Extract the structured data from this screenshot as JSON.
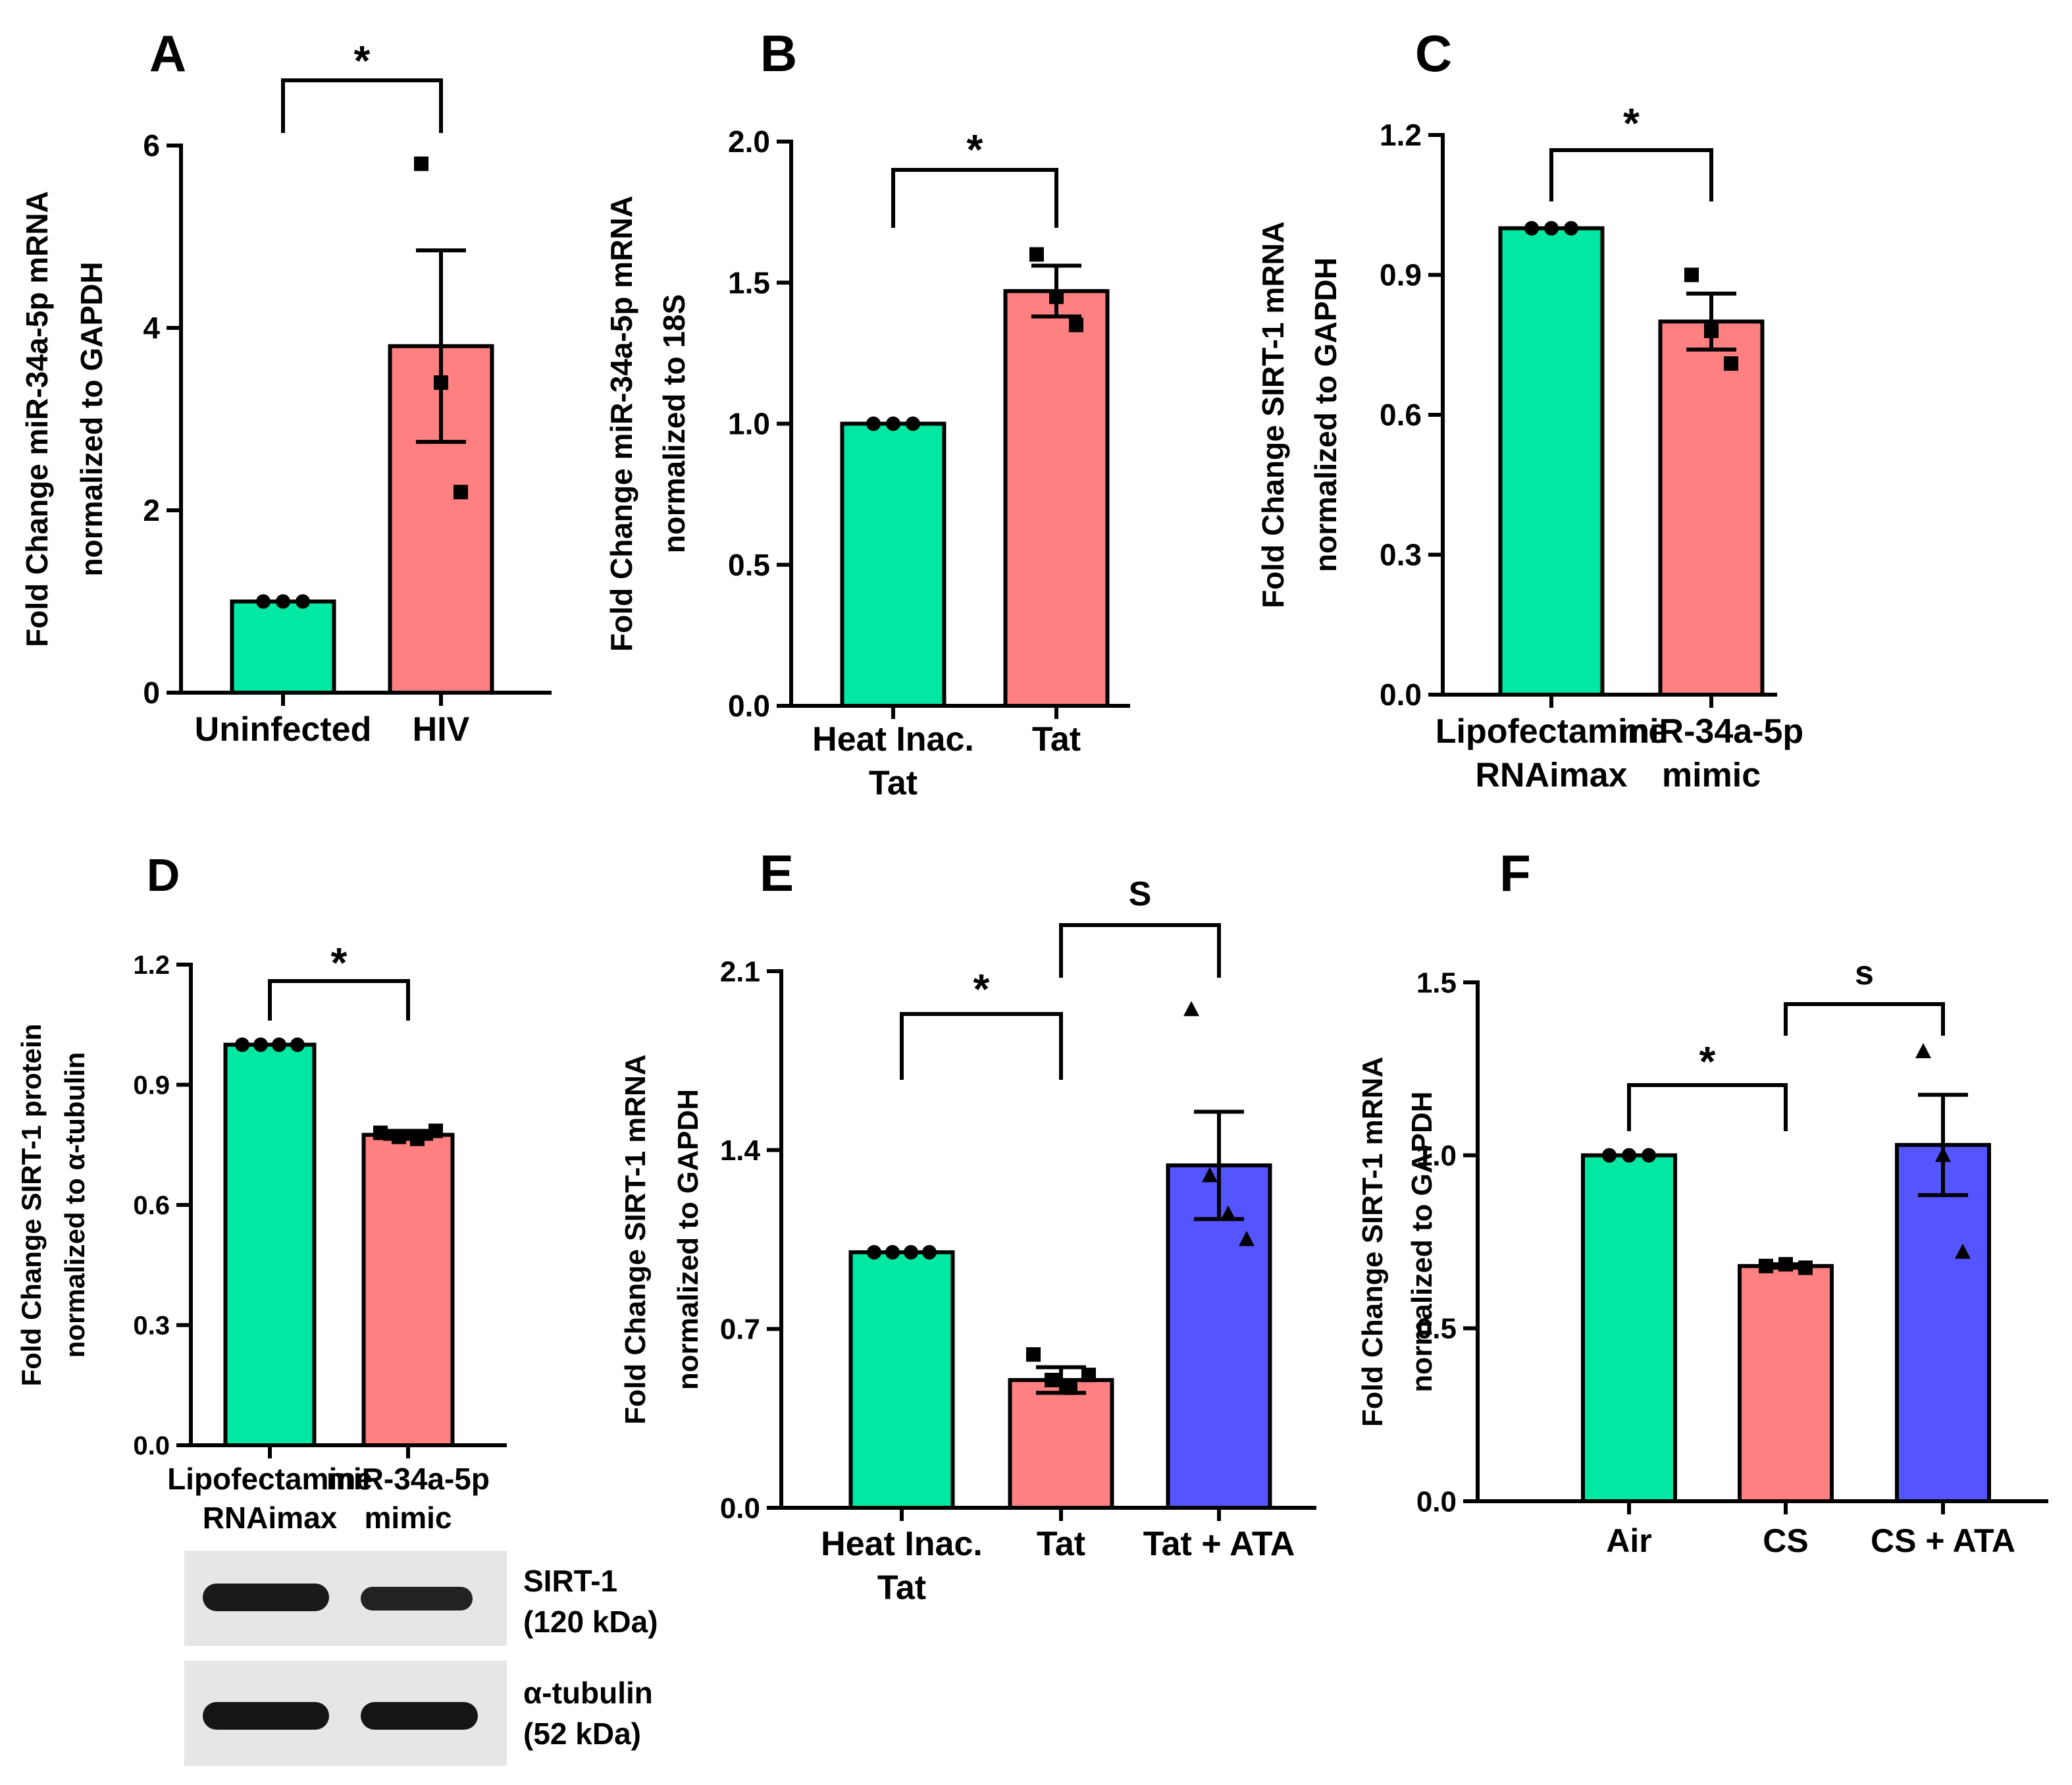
{
  "colors": {
    "green": "#00E8A2",
    "red": "#FF8080",
    "blue": "#5555FF",
    "black": "#000000"
  },
  "chart_data": [
    {
      "panel": "A",
      "type": "bar",
      "categories": [
        "Uninfected",
        "HIV"
      ],
      "values": [
        1.0,
        3.8
      ],
      "sem": [
        0,
        1.05
      ],
      "points": [
        [
          1.0,
          1.0,
          1.0
        ],
        [
          5.8,
          3.4,
          2.2
        ]
      ],
      "markers": [
        "circle",
        "square"
      ],
      "colors": [
        "#00E8A2",
        "#FF8080"
      ],
      "ylabel": [
        "Fold Change miR-34a-5p mRNA",
        "normalized to GAPDH"
      ],
      "ylim": [
        0,
        6
      ],
      "yticks": [
        "0",
        "2",
        "4",
        "6"
      ],
      "comparisons": [
        {
          "from": 0,
          "to": 1,
          "label": "*"
        }
      ]
    },
    {
      "panel": "B",
      "type": "bar",
      "categories": [
        "Heat Inac.\nTat",
        "Tat"
      ],
      "values": [
        1.0,
        1.47
      ],
      "sem": [
        0,
        0.09
      ],
      "points": [
        [
          1.0,
          1.0,
          1.0
        ],
        [
          1.6,
          1.45,
          1.35
        ]
      ],
      "markers": [
        "circle",
        "square"
      ],
      "colors": [
        "#00E8A2",
        "#FF8080"
      ],
      "ylabel": [
        "Fold Change miR-34a-5p mRNA",
        "normalized to 18S"
      ],
      "ylim": [
        0,
        2
      ],
      "yticks": [
        "0.0",
        "0.5",
        "1.0",
        "1.5",
        "2.0"
      ],
      "comparisons": [
        {
          "from": 0,
          "to": 1,
          "label": "*"
        }
      ]
    },
    {
      "panel": "C",
      "type": "bar",
      "categories": [
        "Lipofectamine\nRNAimax",
        "miR-34a-5p\nmimic"
      ],
      "values": [
        1.0,
        0.8
      ],
      "sem": [
        0,
        0.06
      ],
      "points": [
        [
          1.0,
          1.0,
          1.0
        ],
        [
          0.9,
          0.78,
          0.71
        ]
      ],
      "markers": [
        "circle",
        "square"
      ],
      "colors": [
        "#00E8A2",
        "#FF8080"
      ],
      "ylabel": [
        "Fold Change SIRT-1 mRNA",
        "normalized to GAPDH"
      ],
      "ylim": [
        0,
        1.2
      ],
      "yticks": [
        "0.0",
        "0.3",
        "0.6",
        "0.9",
        "1.2"
      ],
      "comparisons": [
        {
          "from": 0,
          "to": 1,
          "label": "*"
        }
      ]
    },
    {
      "panel": "D",
      "type": "bar",
      "categories": [
        "Lipofectamine\nRNAimax",
        "miR-34a-5p\nmimic"
      ],
      "values": [
        1.0,
        0.775
      ],
      "sem": [
        0,
        0.01
      ],
      "points": [
        [
          1.0,
          1.0,
          1.0,
          1.0
        ],
        [
          0.78,
          0.77,
          0.765,
          0.785
        ]
      ],
      "markers": [
        "circle",
        "square"
      ],
      "colors": [
        "#00E8A2",
        "#FF8080"
      ],
      "ylabel": [
        "Fold Change SIRT-1 protein",
        "normalized to α-tubulin"
      ],
      "ylim": [
        0,
        1.2
      ],
      "yticks": [
        "0.0",
        "0.3",
        "0.6",
        "0.9",
        "1.2"
      ],
      "comparisons": [
        {
          "from": 0,
          "to": 1,
          "label": "*"
        }
      ],
      "blot": {
        "bands": [
          {
            "protein": "SIRT-1",
            "size": "(120 kDa)"
          },
          {
            "protein": "α-tubulin",
            "size": "(52 kDa)"
          }
        ]
      }
    },
    {
      "panel": "E",
      "type": "bar",
      "categories": [
        "Heat Inac.\nTat",
        "Tat",
        "Tat + ATA"
      ],
      "values": [
        1.0,
        0.5,
        1.34
      ],
      "sem": [
        0,
        0.05,
        0.21
      ],
      "points": [
        [
          1.0,
          1.0,
          1.0,
          1.0
        ],
        [
          0.6,
          0.5,
          0.47,
          0.52
        ],
        [
          1.95,
          1.3,
          1.15,
          1.05
        ]
      ],
      "markers": [
        "circle",
        "square",
        "triangle"
      ],
      "colors": [
        "#00E8A2",
        "#FF8080",
        "#5555FF"
      ],
      "ylabel": [
        "Fold Change SIRT-1 mRNA",
        "normalized to GAPDH"
      ],
      "ylim": [
        0,
        2.1
      ],
      "yticks": [
        "0.0",
        "0.7",
        "1.4",
        "2.1"
      ],
      "comparisons": [
        {
          "from": 0,
          "to": 1,
          "label": "*"
        },
        {
          "from": 1,
          "to": 2,
          "label": "S"
        }
      ]
    },
    {
      "panel": "F",
      "type": "bar",
      "categories": [
        "Air",
        "CS",
        "CS + ATA"
      ],
      "values": [
        1.0,
        0.68,
        1.03
      ],
      "sem": [
        0,
        0.005,
        0.145
      ],
      "points": [
        [
          1.0,
          1.0,
          1.0
        ],
        [
          0.68,
          0.685,
          0.675
        ],
        [
          1.3,
          1.0,
          0.72
        ]
      ],
      "markers": [
        "circle",
        "square",
        "triangle"
      ],
      "colors": [
        "#00E8A2",
        "#FF8080",
        "#5555FF"
      ],
      "ylabel": [
        "Fold Change SIRT-1 mRNA",
        "normalized to GAPDH"
      ],
      "ylim": [
        0,
        1.5
      ],
      "yticks": [
        "0.0",
        "0.5",
        "1.0",
        "1.5"
      ],
      "comparisons": [
        {
          "from": 0,
          "to": 1,
          "label": "*"
        },
        {
          "from": 1,
          "to": 2,
          "label": "s"
        }
      ]
    }
  ]
}
